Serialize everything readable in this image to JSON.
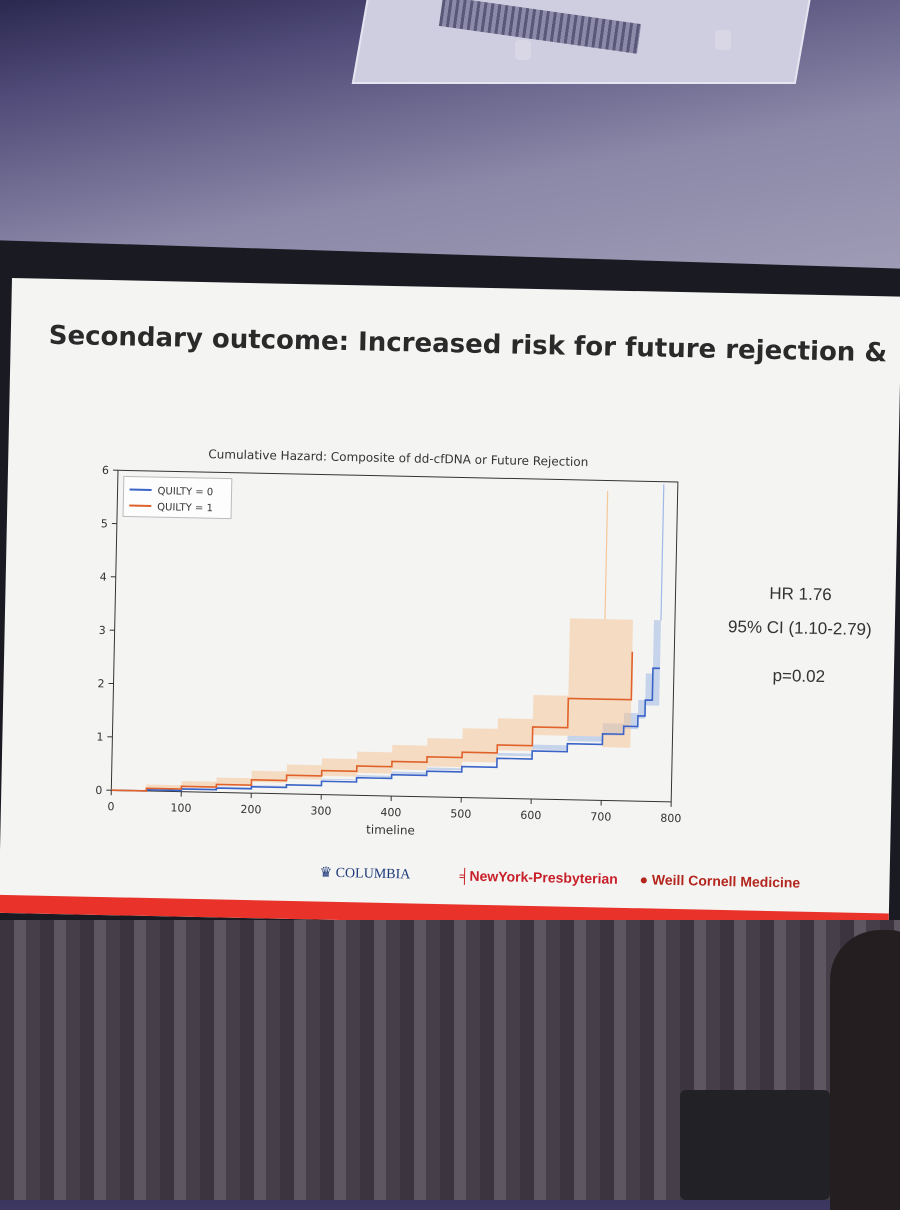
{
  "slide": {
    "title": "Secondary outcome: Increased risk for future rejection & ↑dd-cfDN"
  },
  "stats": {
    "hr": "HR 1.76",
    "ci": "95% CI (1.10-2.79)",
    "p": "p=0.02"
  },
  "logos": {
    "columbia": "COLUMBIA",
    "nyp": "NewYork-Presbyterian",
    "weill_cornell": "Weill Cornell Medicine"
  },
  "colors": {
    "series0": "#3a63c8",
    "series1": "#e0622a",
    "band0": "#9fb8e6",
    "band1": "#f5c79a",
    "accent_red": "#e8322a"
  },
  "chart_data": {
    "type": "line",
    "title": "Cumulative Hazard: Composite of dd-cfDNA or Future Rejection",
    "xlabel": "timeline",
    "ylabel": "",
    "xlim": [
      0,
      800
    ],
    "ylim": [
      0,
      6
    ],
    "xticks": [
      0,
      100,
      200,
      300,
      400,
      500,
      600,
      700,
      800
    ],
    "yticks": [
      0,
      1,
      2,
      3,
      4,
      5,
      6
    ],
    "legend_position": "top-left",
    "grid": false,
    "series": [
      {
        "name": "QUILTY = 0",
        "x": [
          0,
          50,
          100,
          150,
          200,
          250,
          300,
          350,
          400,
          450,
          500,
          550,
          600,
          650,
          700,
          730,
          750,
          760,
          770,
          780
        ],
        "y": [
          0,
          0.02,
          0.05,
          0.08,
          0.12,
          0.17,
          0.25,
          0.33,
          0.4,
          0.48,
          0.58,
          0.75,
          0.9,
          1.05,
          1.25,
          1.4,
          1.6,
          1.9,
          2.5,
          2.5
        ],
        "lower": [
          0,
          0.01,
          0.03,
          0.06,
          0.09,
          0.14,
          0.21,
          0.28,
          0.35,
          0.42,
          0.51,
          0.66,
          0.8,
          0.93,
          1.1,
          1.22,
          1.35,
          1.55,
          1.8,
          1.8
        ],
        "upper": [
          0,
          0.03,
          0.07,
          0.11,
          0.15,
          0.21,
          0.3,
          0.38,
          0.46,
          0.55,
          0.66,
          0.85,
          1.02,
          1.2,
          1.45,
          1.65,
          1.9,
          2.4,
          3.4,
          3.4
        ]
      },
      {
        "name": "QUILTY = 1",
        "x": [
          0,
          50,
          100,
          150,
          200,
          250,
          300,
          350,
          400,
          450,
          500,
          550,
          600,
          650,
          700,
          740
        ],
        "y": [
          0,
          0.05,
          0.1,
          0.15,
          0.25,
          0.35,
          0.45,
          0.55,
          0.65,
          0.75,
          0.85,
          1.0,
          1.35,
          1.9,
          1.9,
          2.8
        ],
        "lower": [
          0,
          0.02,
          0.05,
          0.08,
          0.14,
          0.21,
          0.28,
          0.35,
          0.42,
          0.5,
          0.57,
          0.67,
          0.9,
          1.2,
          1.2,
          1.0
        ],
        "upper": [
          0,
          0.12,
          0.2,
          0.28,
          0.42,
          0.55,
          0.68,
          0.82,
          0.96,
          1.1,
          1.3,
          1.5,
          1.95,
          3.4,
          3.4,
          3.4
        ]
      }
    ]
  }
}
